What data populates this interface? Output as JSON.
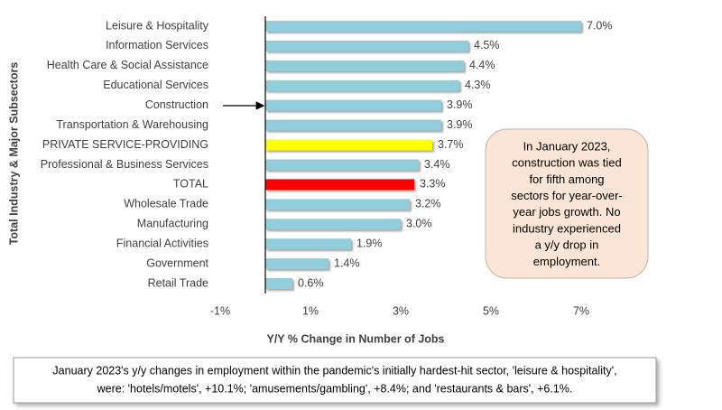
{
  "chart_data": {
    "type": "bar",
    "orientation": "horizontal",
    "y_axis_title": "Total Industry & Major Subsectors",
    "x_axis_title": "Y/Y % Change in Number of Jobs",
    "categories": [
      "Leisure & Hospitality",
      "Information Services",
      "Health Care & Social Assistance",
      "Educational Services",
      "Construction",
      "Transportation & Warehousing",
      "PRIVATE SERVICE-PROVIDING",
      "Professional & Business Services",
      "TOTAL",
      "Wholesale Trade",
      "Manufacturing",
      "Financial Activities",
      "Government",
      "Retail Trade"
    ],
    "values": [
      7.0,
      4.5,
      4.4,
      4.3,
      3.9,
      3.9,
      3.7,
      3.4,
      3.3,
      3.2,
      3.0,
      1.9,
      1.4,
      0.6
    ],
    "value_labels": [
      "7.0%",
      "4.5%",
      "4.4%",
      "4.3%",
      "3.9%",
      "3.9%",
      "3.7%",
      "3.4%",
      "3.3%",
      "3.2%",
      "3.0%",
      "1.9%",
      "1.4%",
      "0.6%"
    ],
    "colors": [
      "#92cddc",
      "#92cddc",
      "#92cddc",
      "#92cddc",
      "#92cddc",
      "#92cddc",
      "#ffff00",
      "#92cddc",
      "#ff0000",
      "#92cddc",
      "#92cddc",
      "#92cddc",
      "#92cddc",
      "#92cddc"
    ],
    "xlim": [
      -1,
      7
    ],
    "xticks": [
      {
        "value": -1,
        "label": "-1%"
      },
      {
        "value": 1,
        "label": "1%"
      },
      {
        "value": 3,
        "label": "3%"
      },
      {
        "value": 5,
        "label": "5%"
      },
      {
        "value": 7,
        "label": "7%"
      }
    ],
    "annotation": [
      "In January 2023,",
      "construction was tied",
      "for fifth among",
      "sectors for year-over-",
      "year jobs growth. No",
      "industry experienced",
      "a y/y drop in",
      "employment."
    ],
    "footnote": [
      "January 2023's y/y changes in employment within the pandemic's initially hardest-hit sector, 'leisure & hospitality',",
      "were: 'hotels/motels', +10.1%; 'amusements/gambling', +8.4%; and 'restaurants & bars', +6.1%."
    ]
  }
}
